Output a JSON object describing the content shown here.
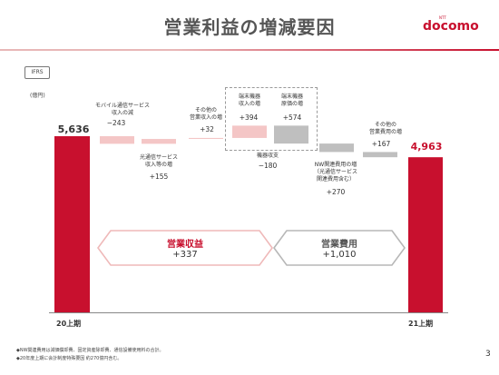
{
  "header": {
    "title": "営業利益の増減要因",
    "logo_text": "docomo",
    "logo_small": "NTT"
  },
  "badge": "IFRS",
  "unit": "(億円)",
  "chart_data": {
    "type": "bar",
    "subtype": "waterfall",
    "start": {
      "label": "20上期",
      "value": 5636,
      "value_text": "5,636"
    },
    "end": {
      "label": "21上期",
      "value": 4963,
      "value_text": "4,963"
    },
    "steps": [
      {
        "label": "モバイル通信サービス\n収入の減",
        "value": -243,
        "value_text": "−243",
        "category": "revenue"
      },
      {
        "label": "光通信サービス\n収入等の増",
        "value": 155,
        "value_text": "+155",
        "category": "revenue"
      },
      {
        "label": "その他の\n営業収入の増",
        "value": 32,
        "value_text": "+32",
        "category": "revenue"
      },
      {
        "label": "端末機器\n収入の増",
        "value": 394,
        "value_text": "+394",
        "category": "revenue"
      },
      {
        "label": "端末機器\n原価の増",
        "value": -574,
        "value_text": "+574",
        "category": "expense"
      },
      {
        "label": "機器収支",
        "value": -180,
        "value_text": "−180",
        "category": "note"
      },
      {
        "label": "NW関連費用の増\n（光通信サービス\n関連費用含む）",
        "value": -270,
        "value_text": "+270",
        "category": "expense"
      },
      {
        "label": "その他の\n営業費用の増",
        "value": -167,
        "value_text": "+167",
        "category": "expense"
      }
    ],
    "summary": [
      {
        "label": "営業収益",
        "value_text": "+337"
      },
      {
        "label": "営業費用",
        "value_text": "+1,010"
      }
    ],
    "colors": {
      "total": "#c8102e",
      "revenue": "#f4c6c6",
      "expense": "#bfbfbf"
    }
  },
  "footnotes": [
    "◆NW関連費用は減価償却費、固定資産除却費、通信設備使用料の合計。",
    "◆20年度上期に会計制度特殊要因 約270億円含む。"
  ],
  "page_number": "3"
}
